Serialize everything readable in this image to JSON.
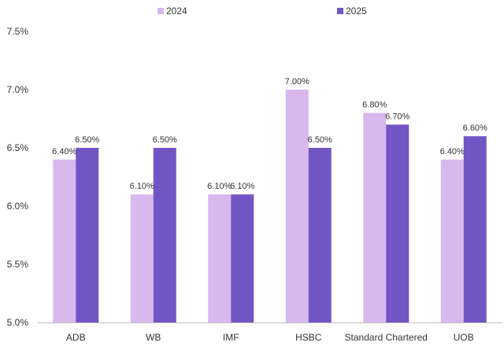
{
  "chart_data": {
    "type": "bar",
    "categories": [
      "ADB",
      "WB",
      "IMF",
      "HSBC",
      "Standard Chartered",
      "UOB"
    ],
    "series": [
      {
        "name": "2024",
        "color": "#d9b8ee",
        "values": [
          6.4,
          6.1,
          6.1,
          7.0,
          6.8,
          6.4
        ],
        "labels": [
          "6.40%",
          "6.10%",
          "6.10%",
          "7.00%",
          "6.80%",
          "6.40%"
        ]
      },
      {
        "name": "2025",
        "color": "#7255c4",
        "values": [
          6.5,
          6.5,
          6.1,
          6.5,
          6.7,
          6.6
        ],
        "labels": [
          "6.50%",
          "6.50%",
          "6.10%",
          "6.50%",
          "6.70%",
          "6.60%"
        ]
      }
    ],
    "y_ticks": [
      5.0,
      5.5,
      6.0,
      6.5,
      7.0,
      7.5
    ],
    "y_tick_labels": [
      "5.0%",
      "5.5%",
      "6.0%",
      "6.5%",
      "7.0%",
      "7.5%"
    ],
    "ylim": [
      5.0,
      7.5
    ],
    "grid": false,
    "legend_position": "top",
    "axis_color": "#bfbfbf"
  }
}
